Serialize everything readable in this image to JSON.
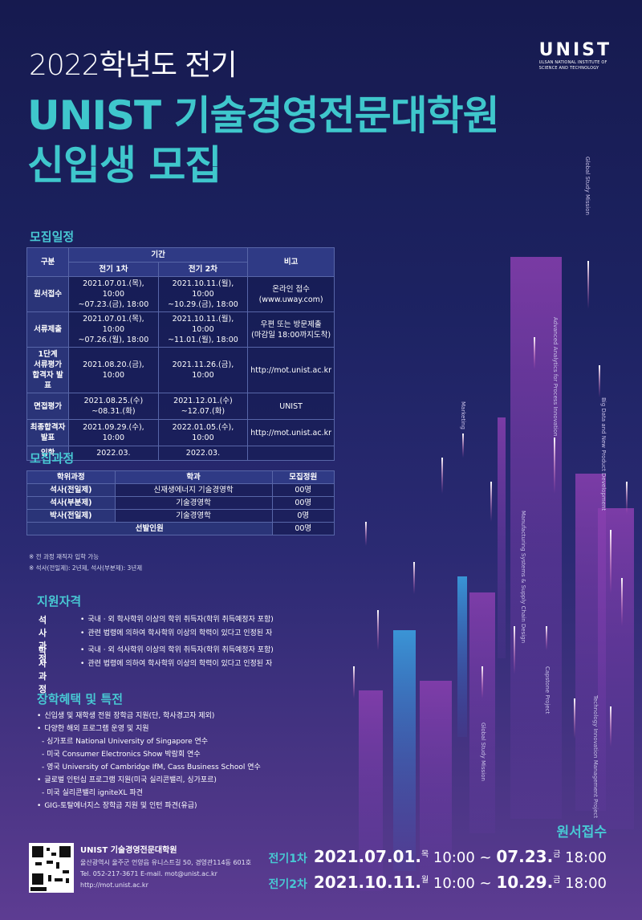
{
  "header": {
    "year": "2022학년도 전기",
    "title1": "UNIST 기술경영전문대학원",
    "title2": "신입생 모집"
  },
  "logo": {
    "mark": "UNIST",
    "line1": "ULSAN NATIONAL INSTITUTE OF",
    "line2": "SCIENCE AND TECHNOLOGY"
  },
  "schedule": {
    "title": "모집일정",
    "head": {
      "category": "구분",
      "period": "기간",
      "first": "전기 1차",
      "second": "전기 2차",
      "note": "비고"
    },
    "rows": [
      [
        "원서접수",
        "2021.07.01.(목), 10:00\n~07.23.(금), 18:00",
        "2021.10.11.(월), 10:00\n~10.29.(금), 18:00",
        "온라인 접수\n(www.uway.com)"
      ],
      [
        "서류제출",
        "2021.07.01.(목), 10:00\n~07.26.(월), 18:00",
        "2021.10.11.(월), 10:00\n~11.01.(월), 18:00",
        "우편 또는 방문제출\n(마감일 18:00까지도착)"
      ],
      [
        "1단계\n서류평가\n합격자 발표",
        "2021.08.20.(금), 10:00",
        "2021.11.26.(금), 10:00",
        "http://mot.unist.ac.kr"
      ],
      [
        "면접평가",
        "2021.08.25.(수)\n~08.31.(화)",
        "2021.12.01.(수)\n~12.07.(화)",
        "UNIST"
      ],
      [
        "최종합격자\n발표",
        "2021.09.29.(수), 10:00",
        "2022.01.05.(수), 10:00",
        "http://mot.unist.ac.kr"
      ],
      [
        "입학",
        "2022.03.",
        "2022.03."
      ]
    ]
  },
  "programs": {
    "title": "모집과정",
    "head": [
      "학위과정",
      "학과",
      "모집정원"
    ],
    "master_full": "석사(전일제)",
    "dept_energy": "신재생에너지 기술경영학",
    "quota_energy": "00명",
    "dept_mot": "기술경영학",
    "quota_mot": "00명",
    "master_part": "석사(부분제)",
    "doctor": "박사(전일제)",
    "dept_doctor": "기술경영학",
    "quota_doctor": "0명",
    "total_label": "선발인원",
    "total": "00명"
  },
  "notes": [
    "※ 전 과정 재직자 입학 가능",
    "※ 석사(전일제): 2년제, 석사(부분제): 3년제"
  ],
  "qualifications": {
    "title": "지원자격",
    "groups": [
      {
        "label": "석사과정",
        "items": [
          "국내 · 외 학사학위 이상의 학위 취득자(학위 취득예정자 포함)",
          "관련 법령에 의하여 학사학위 이상의 학력이 있다고 인정된 자"
        ]
      },
      {
        "label": "박사과정",
        "items": [
          "국내 · 외 석사학위 이상의 학위 취득자(학위 취득예정자 포함)",
          "관련 법령에 의하여 학사학위 이상의 학력이 있다고 인정된 자"
        ]
      }
    ]
  },
  "benefits": {
    "title": "장학혜택 및 특전",
    "items": [
      {
        "text": "신입생 및 재학생 전원 장학금 지원(단, 학사경고자 제외)"
      },
      {
        "text": "다양한 해외 프로그램 운영 및 지원",
        "sub": [
          "싱가포르 National University of Singapore 연수",
          "미국 Consumer Electronics Show 박람회 연수",
          "영국 University of Cambridge IfM, Cass Business School 연수"
        ]
      },
      {
        "text": "글로벌 인턴십 프로그램 지원(미국 실리콘밸리, 싱가포르)",
        "sub": [
          "미국 실리콘밸리 igniteXL 파견"
        ]
      },
      {
        "text": "GIG-토탈에너지스 장학금 지원 및 인턴 파견(유급)"
      }
    ]
  },
  "tracks": [
    "Global Study Mission",
    "Advanced Analytics for Process Innovation",
    "Marketing",
    "Big Data and New Product Development",
    "Manufacturing Systems & Supply Chain Design",
    "Capstone Project",
    "Global Study Mission",
    "Technology Innovation Management Project"
  ],
  "contact": {
    "name": "UNIST 기술경영전문대학원",
    "address": "울산광역시 울주군 언양읍 유니스트길 50, 경영관114동 601호",
    "phone": "Tel. 052-217-3671  E-mail. mot@unist.ac.kr",
    "url": "http://mot.unist.ac.kr"
  },
  "apply": {
    "title": "원서접수",
    "rounds": [
      {
        "label": "전기1차",
        "start_date": "2021.07.01.",
        "start_day": "목",
        "start_time": "10:00 ~",
        "end_date": "07.23.",
        "end_day": "금",
        "end_time": "18:00"
      },
      {
        "label": "전기2차",
        "start_date": "2021.10.11.",
        "start_day": "월",
        "start_time": "10:00 ~",
        "end_date": "10.29.",
        "end_day": "금",
        "end_time": "18:00"
      }
    ]
  }
}
